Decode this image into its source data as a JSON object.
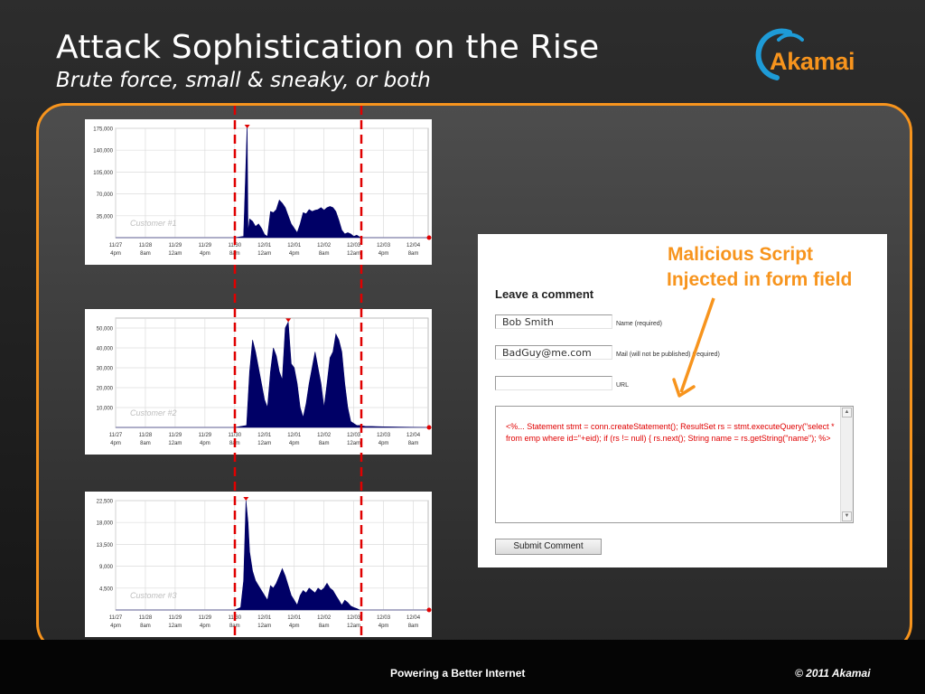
{
  "slide": {
    "title": "Attack Sophistication on the Rise",
    "subtitle": "Brute force, small & sneaky, or both",
    "footer_center": "Powering a Better Internet",
    "footer_right": "© 2011 Akamai"
  },
  "logo": {
    "text": "Akamai",
    "icon": "akamai-swoosh-icon"
  },
  "colors": {
    "accent": "#f7941d",
    "area": "#000066",
    "marker": "#e00000",
    "script": "#e00000"
  },
  "chart_data": [
    {
      "type": "area",
      "annotation": "Customer #1",
      "ylim": [
        0,
        175000
      ],
      "y_ticks": [
        35000,
        70000,
        105000,
        140000,
        175000
      ],
      "y_tick_labels": [
        "35,000",
        "70,000",
        "105,000",
        "140,000",
        "175,000"
      ],
      "x_tick_labels": [
        [
          "11/27",
          "4pm"
        ],
        [
          "11/28",
          "8am"
        ],
        [
          "11/29",
          "12am"
        ],
        [
          "11/29",
          "4pm"
        ],
        [
          "11/30",
          "8am"
        ],
        [
          "12/01",
          "12am"
        ],
        [
          "12/01",
          "4pm"
        ],
        [
          "12/02",
          "8am"
        ],
        [
          "12/03",
          "12am"
        ],
        [
          "12/03",
          "4pm"
        ],
        [
          "12/04",
          "8am"
        ]
      ],
      "x": [
        0,
        3.5,
        4.0,
        4.3,
        4.42,
        4.45,
        4.5,
        4.6,
        4.7,
        4.8,
        4.9,
        5.0,
        5.1,
        5.2,
        5.3,
        5.4,
        5.5,
        5.6,
        5.7,
        5.8,
        5.9,
        6.0,
        6.1,
        6.2,
        6.3,
        6.4,
        6.5,
        6.6,
        6.7,
        6.8,
        6.9,
        7.0,
        7.1,
        7.2,
        7.3,
        7.4,
        7.5,
        7.6,
        7.7,
        7.8,
        7.9,
        8.0,
        8.1,
        8.2,
        8.3,
        8.5,
        10.5
      ],
      "values": [
        0,
        0,
        0,
        2000,
        180000,
        8000,
        30000,
        26000,
        18000,
        22000,
        15000,
        5000,
        2000,
        42000,
        40000,
        45000,
        60000,
        55000,
        48000,
        35000,
        22000,
        15000,
        8000,
        22000,
        40000,
        38000,
        45000,
        42000,
        44000,
        45000,
        48000,
        44000,
        48000,
        50000,
        48000,
        42000,
        28000,
        12000,
        6000,
        8000,
        6000,
        2000,
        4000,
        1000,
        0,
        0,
        0
      ]
    },
    {
      "type": "area",
      "annotation": "Customer #2",
      "ylim": [
        0,
        55000
      ],
      "y_ticks": [
        10000,
        20000,
        30000,
        40000,
        50000
      ],
      "y_tick_labels": [
        "10,000",
        "20,000",
        "30,000",
        "40,000",
        "50,000"
      ],
      "x_tick_labels": [
        [
          "11/27",
          "4pm"
        ],
        [
          "11/28",
          "8am"
        ],
        [
          "11/29",
          "12am"
        ],
        [
          "11/29",
          "4pm"
        ],
        [
          "11/30",
          "8am"
        ],
        [
          "12/01",
          "12am"
        ],
        [
          "12/01",
          "4pm"
        ],
        [
          "12/02",
          "8am"
        ],
        [
          "12/03",
          "12am"
        ],
        [
          "12/03",
          "4pm"
        ],
        [
          "12/04",
          "8am"
        ]
      ],
      "x": [
        0,
        3.5,
        4.0,
        4.2,
        4.4,
        4.5,
        4.6,
        4.7,
        4.8,
        4.9,
        5.0,
        5.1,
        5.2,
        5.3,
        5.4,
        5.5,
        5.6,
        5.7,
        5.8,
        5.9,
        6.0,
        6.1,
        6.2,
        6.3,
        6.4,
        6.5,
        6.6,
        6.7,
        6.8,
        6.9,
        7.0,
        7.1,
        7.2,
        7.3,
        7.4,
        7.5,
        7.6,
        7.7,
        7.8,
        7.9,
        8.0,
        8.1,
        8.2,
        8.4,
        8.6,
        9.0,
        10.5
      ],
      "values": [
        0,
        0,
        0,
        500,
        1000,
        28000,
        44000,
        38000,
        30000,
        22000,
        14000,
        10000,
        28000,
        40000,
        36000,
        28000,
        24000,
        50000,
        53000,
        32000,
        30000,
        22000,
        10000,
        5000,
        12000,
        22000,
        30000,
        38000,
        30000,
        22000,
        10000,
        22000,
        35000,
        38000,
        47000,
        44000,
        38000,
        22000,
        10000,
        3000,
        2000,
        1000,
        1000,
        500,
        500,
        300,
        0
      ]
    },
    {
      "type": "area",
      "annotation": "Customer #3",
      "ylim": [
        0,
        22500
      ],
      "y_ticks": [
        4500,
        9000,
        13500,
        18000,
        22500
      ],
      "y_tick_labels": [
        "4,500",
        "9,000",
        "13,500",
        "18,000",
        "22,500"
      ],
      "x_tick_labels": [
        [
          "11/27",
          "4pm"
        ],
        [
          "11/28",
          "8am"
        ],
        [
          "11/29",
          "12am"
        ],
        [
          "11/29",
          "4pm"
        ],
        [
          "11/30",
          "8am"
        ],
        [
          "12/01",
          "12am"
        ],
        [
          "12/01",
          "4pm"
        ],
        [
          "12/02",
          "8am"
        ],
        [
          "12/03",
          "12am"
        ],
        [
          "12/03",
          "4pm"
        ],
        [
          "12/04",
          "8am"
        ]
      ],
      "x": [
        0,
        3.5,
        4.0,
        4.2,
        4.3,
        4.38,
        4.45,
        4.5,
        4.6,
        4.7,
        4.8,
        4.9,
        5.0,
        5.1,
        5.2,
        5.3,
        5.4,
        5.5,
        5.6,
        5.7,
        5.8,
        5.9,
        6.0,
        6.1,
        6.2,
        6.3,
        6.4,
        6.5,
        6.6,
        6.7,
        6.8,
        6.9,
        7.0,
        7.1,
        7.2,
        7.3,
        7.4,
        7.5,
        7.6,
        7.7,
        7.8,
        7.9,
        8.0,
        8.1,
        8.2,
        8.4,
        10.5
      ],
      "values": [
        0,
        0,
        0,
        500,
        6000,
        22500,
        18000,
        12000,
        8000,
        6000,
        5000,
        4000,
        3000,
        2000,
        5000,
        4500,
        5500,
        7000,
        8500,
        7000,
        5000,
        3000,
        2000,
        1000,
        3000,
        4000,
        3500,
        4500,
        4000,
        3500,
        4500,
        4000,
        4500,
        5500,
        4500,
        4000,
        3000,
        2000,
        1000,
        2000,
        1500,
        800,
        500,
        300,
        0,
        0,
        0
      ]
    }
  ],
  "comment_form": {
    "heading": "Leave a comment",
    "name_value": "Bob Smith",
    "name_label": "Name (required)",
    "mail_value": "BadGuy@me.com",
    "mail_label": "Mail (will not be published) (required)",
    "url_value": "",
    "url_label": "URL",
    "comment_value": "<%... Statement stmt = conn.createStatement(); ResultSet rs = stmt.executeQuery(\"select * from emp where id=\"+eid); if (rs != null) { rs.next(); String name = rs.getString(\"name\"); %>",
    "submit_label": "Submit Comment"
  },
  "callout": {
    "line1": "Malicious Script",
    "line2": "Injected in form field"
  }
}
